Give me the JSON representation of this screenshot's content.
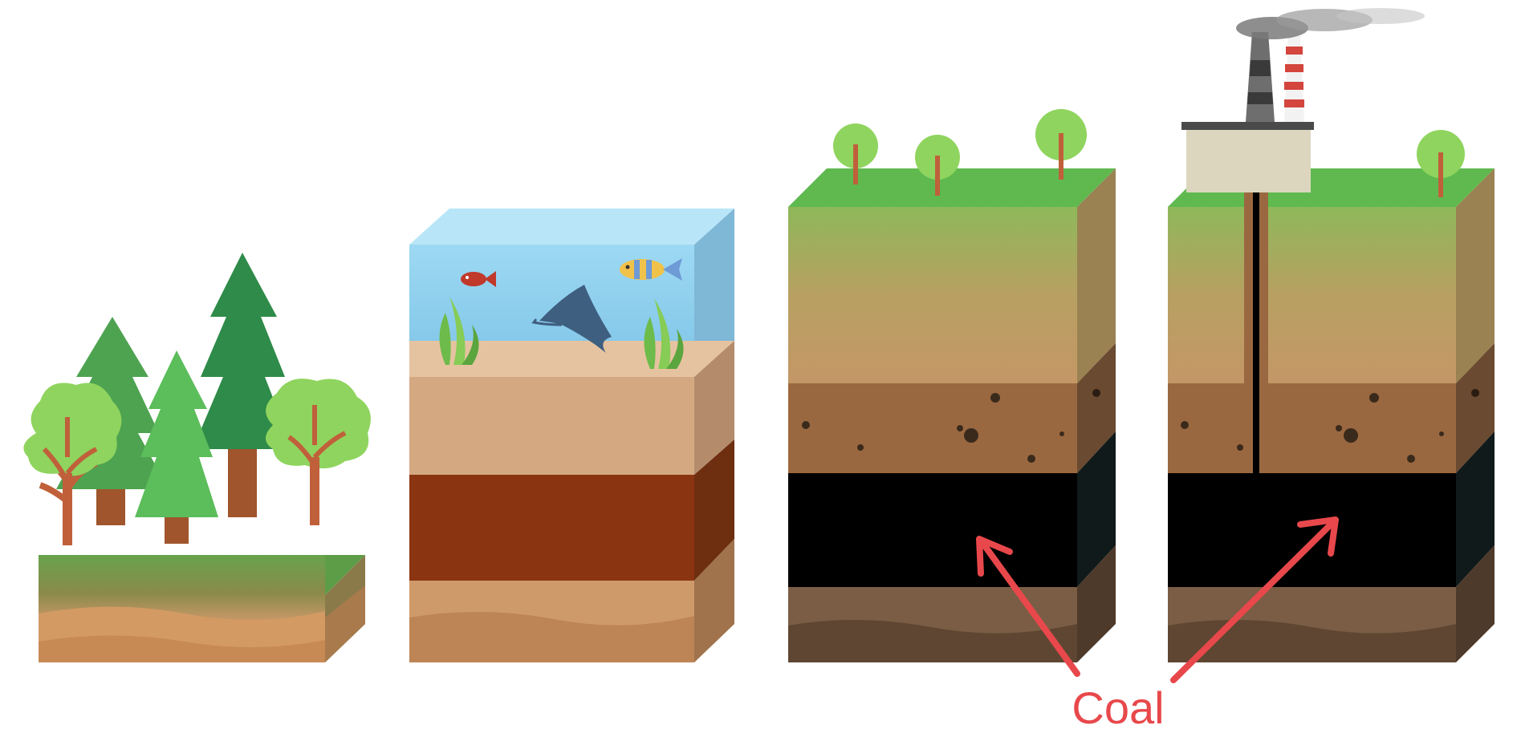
{
  "annotation": {
    "label": "Coal",
    "color": "#e8484b"
  },
  "stages": [
    {
      "name": "forest",
      "icons": [
        "pine-tree-icon",
        "deciduous-tree-icon"
      ]
    },
    {
      "name": "swamp-water",
      "icons": [
        "red-fish-icon",
        "striped-fish-icon",
        "stingray-icon",
        "seaweed-icon"
      ]
    },
    {
      "name": "coal-layer-formed",
      "icons": [
        "small-tree-icon"
      ]
    },
    {
      "name": "coal-mining",
      "icons": [
        "power-plant-icon",
        "chimney-icon",
        "mine-shaft-icon"
      ]
    }
  ],
  "colors": {
    "grass": "#5fb94f",
    "coal": "#000000",
    "soil": "#9a6840",
    "clay": "#8a3412",
    "sand": "#d4a982",
    "water": "#8fd1f0"
  }
}
